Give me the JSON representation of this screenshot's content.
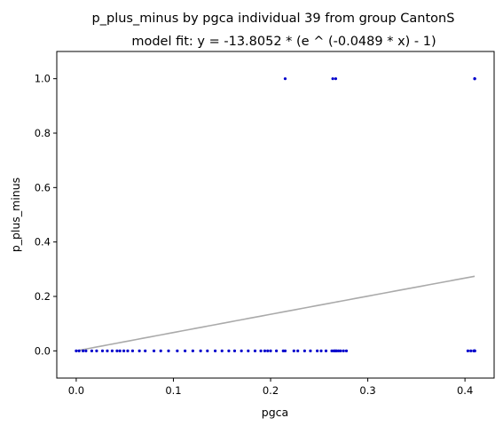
{
  "chart_data": {
    "type": "scatter",
    "title": "p_plus_minus by pgca individual 39 from group CantonS",
    "subtitle": "model fit: y = -13.8052 * (e ^ (-0.0489 * x) - 1)",
    "xlabel": "pgca",
    "ylabel": "p_plus_minus",
    "xlim": [
      -0.02,
      0.43
    ],
    "ylim": [
      -0.1,
      1.1
    ],
    "x_ticks": [
      0.0,
      0.1,
      0.2,
      0.3,
      0.4
    ],
    "x_tick_labels": [
      "0.0",
      "0.1",
      "0.2",
      "0.3",
      "0.4"
    ],
    "y_ticks": [
      0.0,
      0.2,
      0.4,
      0.6,
      0.8,
      1.0
    ],
    "y_tick_labels": [
      "0.0",
      "0.2",
      "0.4",
      "0.6",
      "0.8",
      "1.0"
    ],
    "grid": false,
    "legend": "none",
    "point_color": "#0000cc",
    "fit_color": "#aaaaaa",
    "points": {
      "x": [
        0.0,
        0.003,
        0.007,
        0.01,
        0.016,
        0.021,
        0.027,
        0.032,
        0.037,
        0.042,
        0.045,
        0.049,
        0.053,
        0.058,
        0.065,
        0.071,
        0.08,
        0.087,
        0.095,
        0.104,
        0.112,
        0.12,
        0.128,
        0.135,
        0.143,
        0.15,
        0.157,
        0.163,
        0.17,
        0.177,
        0.184,
        0.19,
        0.194,
        0.197,
        0.2,
        0.206,
        0.213,
        0.215,
        0.224,
        0.228,
        0.235,
        0.241,
        0.248,
        0.252,
        0.257,
        0.263,
        0.265,
        0.266,
        0.267,
        0.268,
        0.27,
        0.272,
        0.275,
        0.278,
        0.403,
        0.406,
        0.409,
        0.41,
        0.41,
        0.41,
        0.41,
        0.215,
        0.264,
        0.267,
        0.41,
        0.41,
        0.41
      ],
      "y": [
        0,
        0,
        0,
        0,
        0,
        0,
        0,
        0,
        0,
        0,
        0,
        0,
        0,
        0,
        0,
        0,
        0,
        0,
        0,
        0,
        0,
        0,
        0,
        0,
        0,
        0,
        0,
        0,
        0,
        0,
        0,
        0,
        0,
        0,
        0,
        0,
        0,
        0,
        0,
        0,
        0,
        0,
        0,
        0,
        0,
        0,
        0,
        0,
        0,
        0,
        0,
        0,
        0,
        0,
        0,
        0,
        0,
        0,
        0,
        0,
        0,
        1,
        1,
        1,
        1,
        1,
        1
      ]
    },
    "fit": {
      "a": -13.8052,
      "b": -0.0489,
      "x_range": [
        0.0,
        0.41
      ]
    }
  }
}
